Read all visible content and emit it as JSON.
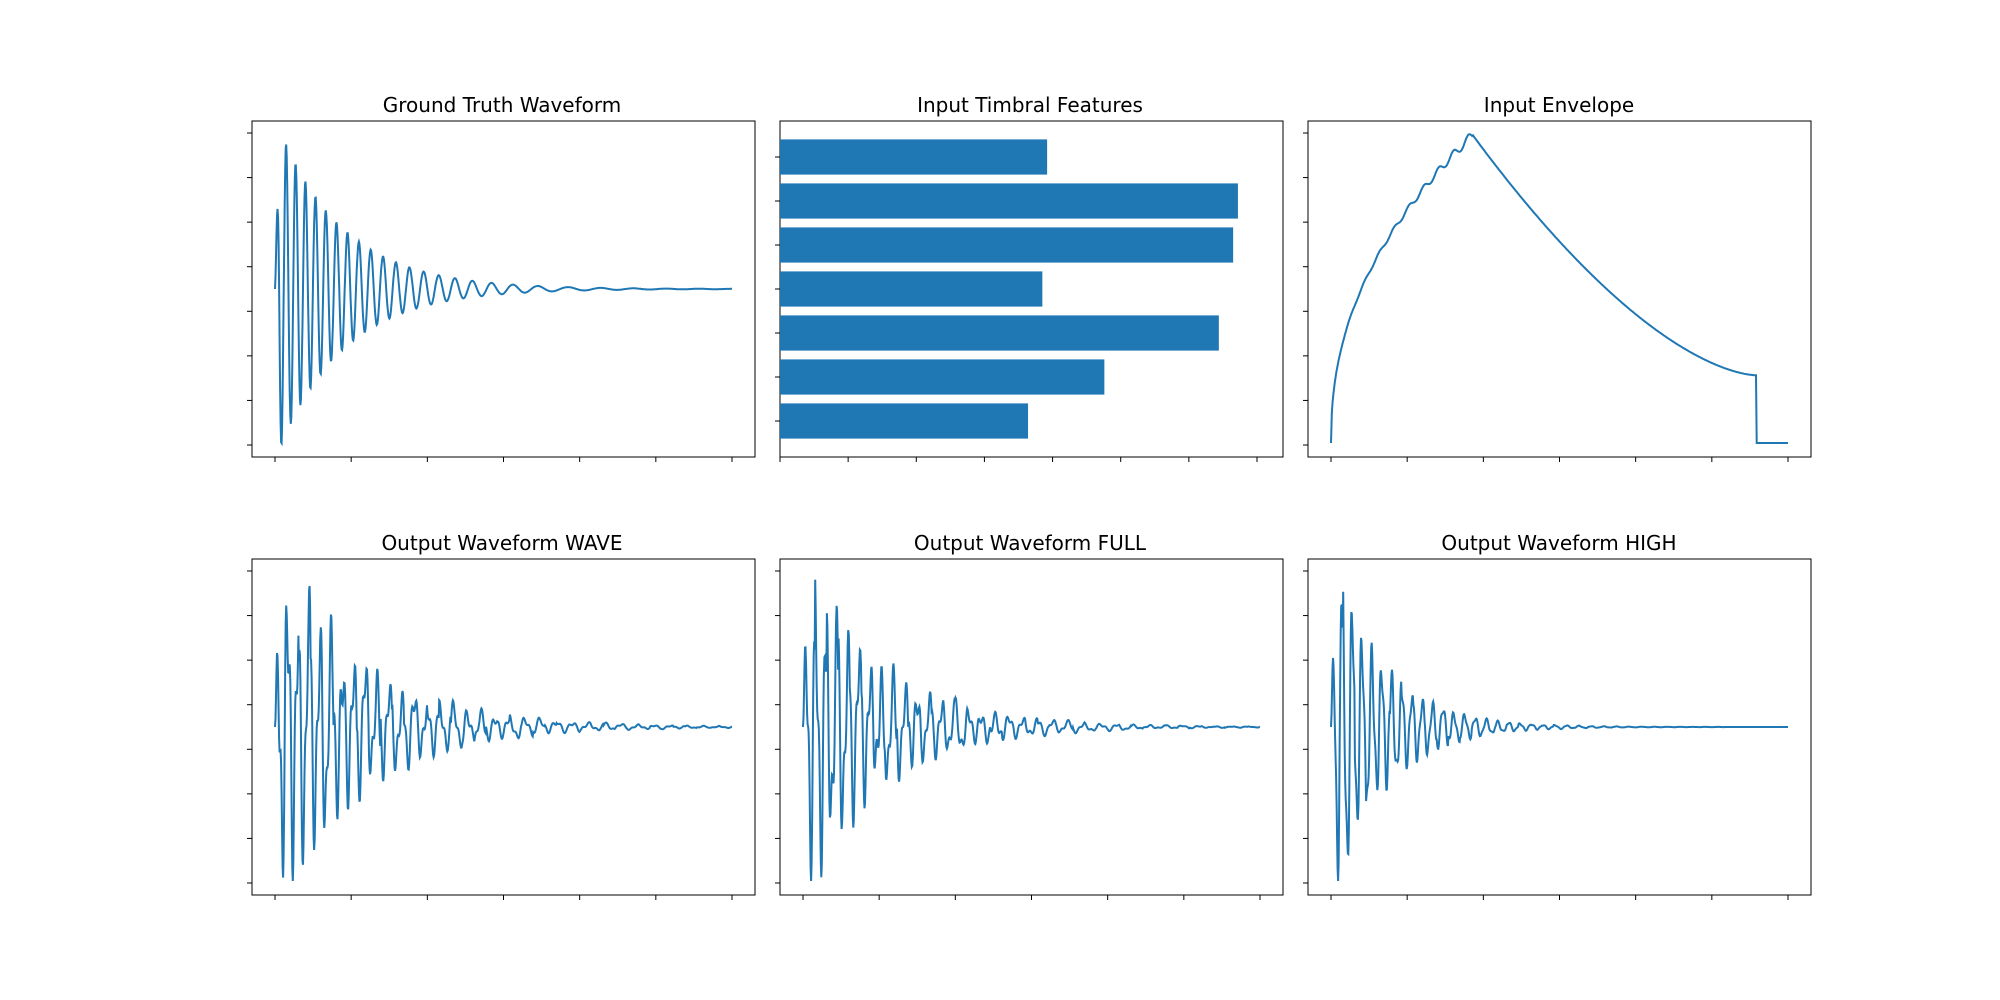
{
  "colors": {
    "series": "#1f77b4",
    "axes": "#000000",
    "background": "#ffffff"
  },
  "chart_data": [
    {
      "type": "line",
      "title": "Ground Truth Waveform",
      "xlabel": "",
      "ylabel": "",
      "tick_labels_visible": false,
      "signal": {
        "kind": "decaying_oscillation",
        "attack": 0.01,
        "freq_start": 50,
        "freq_end": 14,
        "decay": 3.2,
        "chirp": true,
        "noise": 0
      }
    },
    {
      "type": "bar",
      "orientation": "horizontal",
      "title": "Input Timbral Features",
      "xlabel": "",
      "ylabel": "",
      "tick_labels_visible": false,
      "values": [
        0.52,
        0.68,
        0.92,
        0.55,
        0.95,
        0.96,
        0.56
      ],
      "xlim": [
        0,
        1
      ]
    },
    {
      "type": "line",
      "title": "Input Envelope",
      "xlabel": "",
      "ylabel": "",
      "tick_labels_visible": false,
      "signal": {
        "kind": "envelope",
        "peak_at": 0.31,
        "release_at": 0.93
      }
    },
    {
      "type": "line",
      "title": "Output Waveform WAVE",
      "xlabel": "",
      "ylabel": "",
      "tick_labels_visible": false,
      "signal": {
        "kind": "decaying_oscillation",
        "attack": 0.01,
        "freq_start": 44,
        "freq_end": 28,
        "decay": 2.4,
        "chirp": true,
        "noise": 0.55
      }
    },
    {
      "type": "line",
      "title": "Output Waveform FULL",
      "xlabel": "",
      "ylabel": "",
      "tick_labels_visible": false,
      "signal": {
        "kind": "decaying_oscillation",
        "attack": 0.01,
        "freq_start": 44,
        "freq_end": 28,
        "decay": 2.6,
        "chirp": true,
        "noise": 0.55
      }
    },
    {
      "type": "line",
      "title": "Output Waveform HIGH",
      "xlabel": "",
      "ylabel": "",
      "tick_labels_visible": false,
      "signal": {
        "kind": "decaying_oscillation",
        "attack": 0.01,
        "freq_start": 48,
        "freq_end": 36,
        "decay": 4.2,
        "chirp": true,
        "noise": 0.35
      }
    }
  ]
}
